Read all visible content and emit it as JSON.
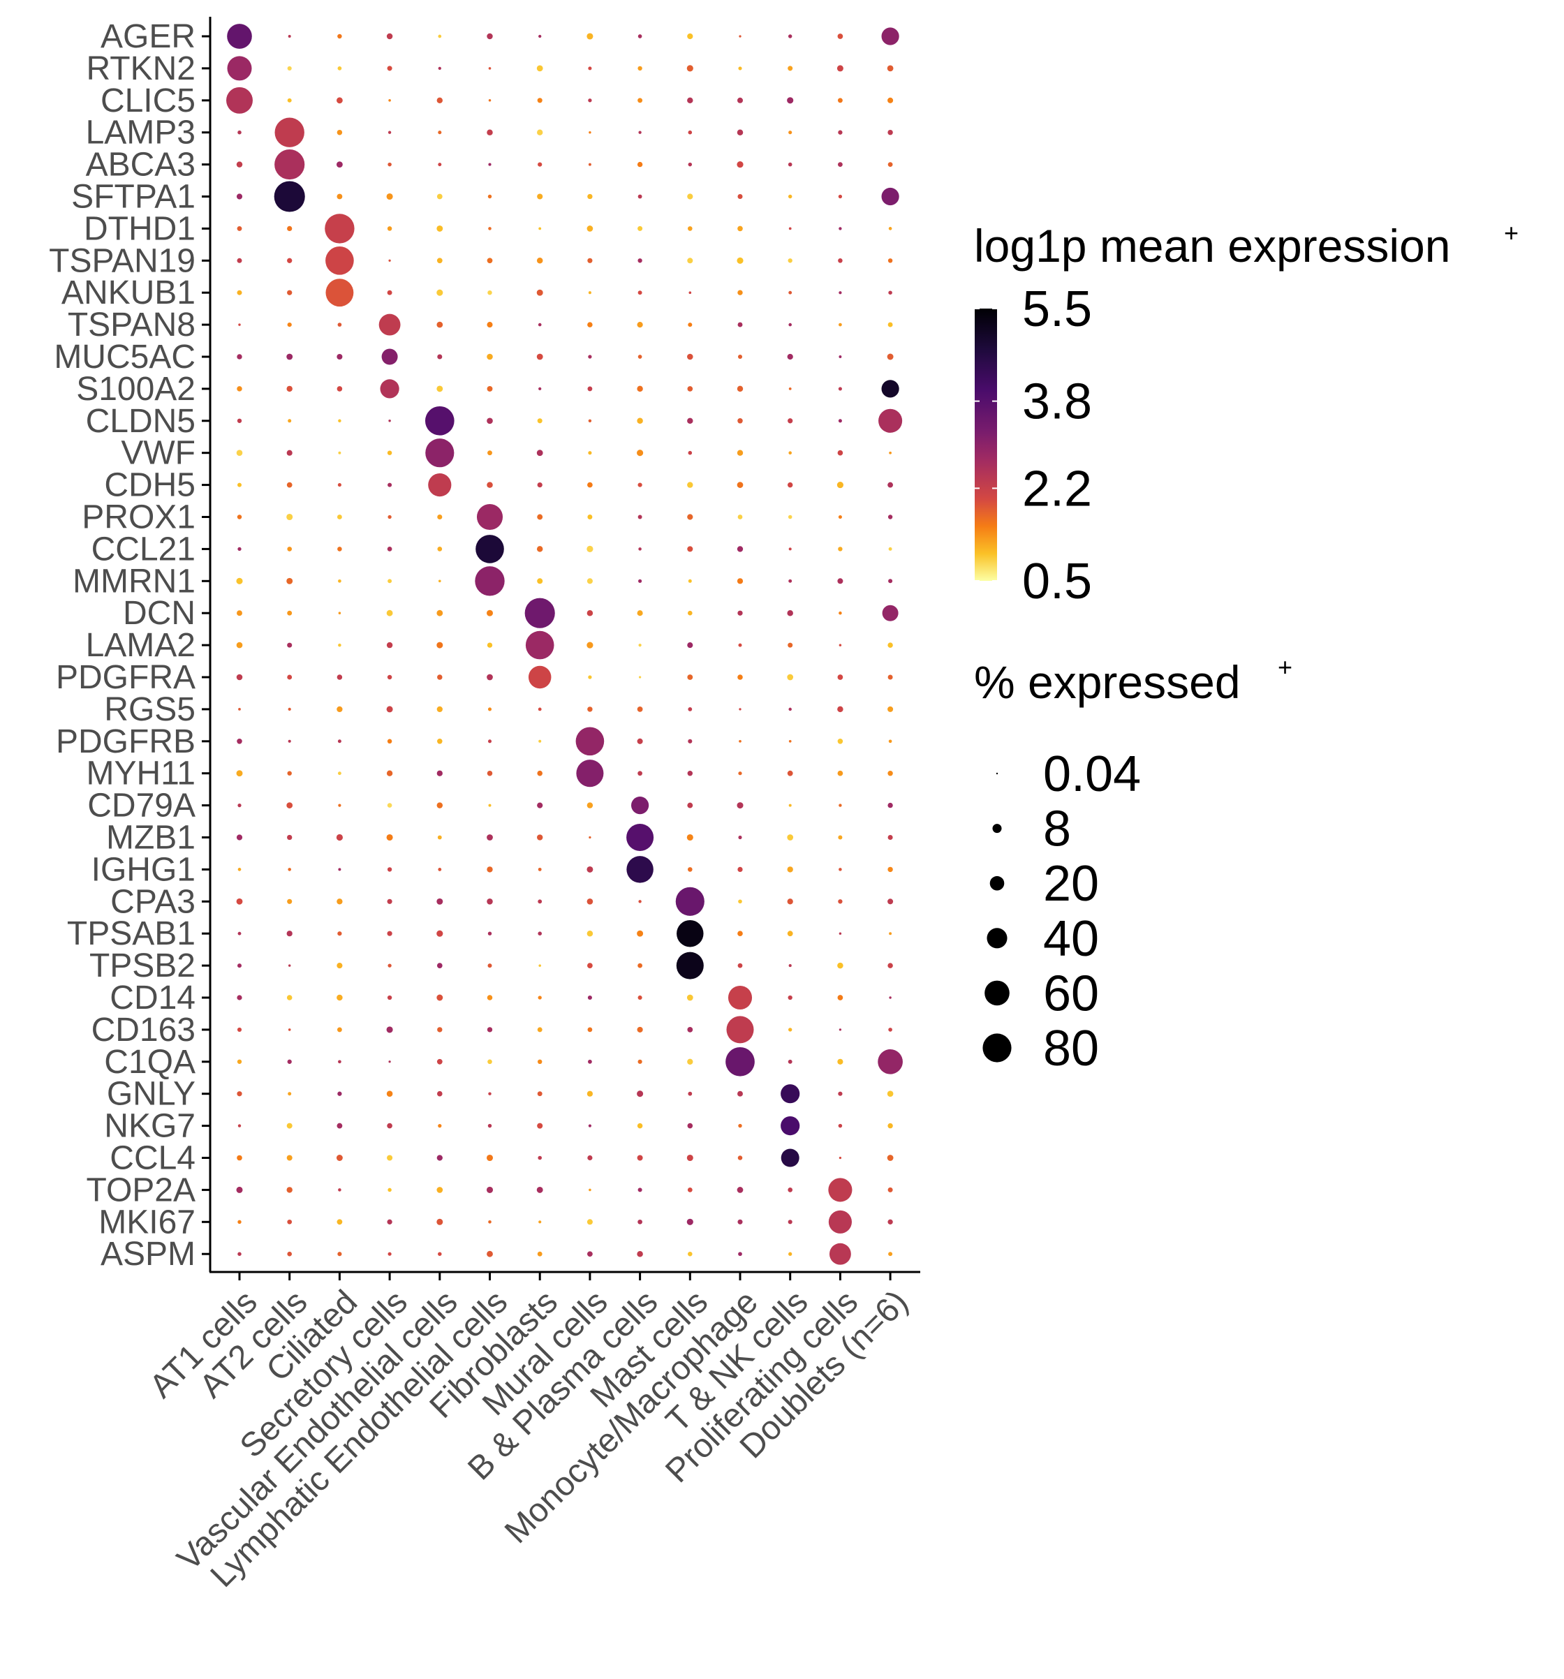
{
  "chart_data": {
    "type": "dotplot",
    "title": "",
    "xlabel": "",
    "ylabel": "",
    "x_categories": [
      "AT1 cells",
      "AT2 cells",
      "Ciliated",
      "Secretory cells",
      "Vascular Endothelial cells",
      "Lymphatic Endothelial cells",
      "Fibroblasts",
      "Mural cells",
      "B & Plasma cells",
      "Mast cells",
      "Monocyte/Macrophage",
      "T & NK cells",
      "Proliferating cells",
      "Doublets (n=6)"
    ],
    "y_categories": [
      "AGER",
      "RTKN2",
      "CLIC5",
      "LAMP3",
      "ABCA3",
      "SFTPA1",
      "DTHD1",
      "TSPAN19",
      "ANKUB1",
      "TSPAN8",
      "MUC5AC",
      "S100A2",
      "CLDN5",
      "VWF",
      "CDH5",
      "PROX1",
      "CCL21",
      "MMRN1",
      "DCN",
      "LAMA2",
      "PDGFRA",
      "RGS5",
      "PDGFRB",
      "MYH11",
      "CD79A",
      "MZB1",
      "IGHG1",
      "CPA3",
      "TPSAB1",
      "TPSB2",
      "CD14",
      "CD163",
      "C1QA",
      "GNLY",
      "NKG7",
      "CCL4",
      "TOP2A",
      "MKI67",
      "ASPM"
    ],
    "color_legend": {
      "title": "log1p mean expression",
      "title_suffix": "+",
      "ticks": [
        "5.5",
        "3.8",
        "2.2",
        "0.5"
      ],
      "range": [
        0.5,
        5.5
      ],
      "palette": "inferno"
    },
    "size_legend": {
      "title": "% expressed",
      "title_suffix": "+",
      "ticks": [
        "0.04",
        "8",
        "20",
        "40",
        "60",
        "80"
      ],
      "values": [
        0.04,
        8,
        20,
        40,
        60,
        80
      ]
    },
    "markers": [
      {
        "cell": "AT1 cells",
        "genes": [
          "AGER",
          "RTKN2",
          "CLIC5"
        ],
        "pct": [
          60,
          58,
          68
        ],
        "expr": [
          3.6,
          2.8,
          2.5
        ]
      },
      {
        "cell": "AT2 cells",
        "genes": [
          "LAMP3",
          "ABCA3",
          "SFTPA1"
        ],
        "pct": [
          85,
          88,
          92
        ],
        "expr": [
          2.3,
          2.6,
          4.8
        ]
      },
      {
        "cell": "Ciliated",
        "genes": [
          "DTHD1",
          "TSPAN19",
          "ANKUB1"
        ],
        "pct": [
          85,
          78,
          75
        ],
        "expr": [
          2.2,
          2.1,
          1.9
        ]
      },
      {
        "cell": "Secretory cells",
        "genes": [
          "TSPAN8",
          "MUC5AC",
          "S100A2"
        ],
        "pct": [
          45,
          25,
          35
        ],
        "expr": [
          2.3,
          3.1,
          2.5
        ]
      },
      {
        "cell": "Vascular Endothelial cells",
        "genes": [
          "CLDN5",
          "VWF",
          "CDH5"
        ],
        "pct": [
          82,
          80,
          52
        ],
        "expr": [
          3.8,
          3.0,
          2.3
        ]
      },
      {
        "cell": "Lymphatic Endothelial cells",
        "genes": [
          "PROX1",
          "CCL21",
          "MMRN1"
        ],
        "pct": [
          65,
          78,
          85
        ],
        "expr": [
          2.8,
          4.8,
          3.0
        ]
      },
      {
        "cell": "Fibroblasts",
        "genes": [
          "DCN",
          "LAMA2",
          "PDGFRA"
        ],
        "pct": [
          88,
          78,
          50
        ],
        "expr": [
          3.4,
          2.8,
          2.1
        ]
      },
      {
        "cell": "Mural cells",
        "genes": [
          "PDGFRB",
          "MYH11"
        ],
        "pct": [
          78,
          72
        ],
        "expr": [
          2.9,
          3.1
        ]
      },
      {
        "cell": "B & Plasma cells",
        "genes": [
          "CD79A",
          "MZB1",
          "IGHG1"
        ],
        "pct": [
          30,
          72,
          70
        ],
        "expr": [
          3.2,
          3.8,
          4.5
        ]
      },
      {
        "cell": "Mast cells",
        "genes": [
          "CPA3",
          "TPSAB1",
          "TPSB2"
        ],
        "pct": [
          80,
          70,
          72
        ],
        "expr": [
          3.5,
          5.3,
          5.2
        ]
      },
      {
        "cell": "Monocyte/Macrophage",
        "genes": [
          "CD14",
          "CD163",
          "C1QA"
        ],
        "pct": [
          55,
          72,
          82
        ],
        "expr": [
          2.2,
          2.3,
          3.5
        ]
      },
      {
        "cell": "T & NK cells",
        "genes": [
          "GNLY",
          "NKG7",
          "CCL4"
        ],
        "pct": [
          35,
          35,
          32
        ],
        "expr": [
          4.3,
          4.0,
          4.6
        ]
      },
      {
        "cell": "Proliferating cells",
        "genes": [
          "TOP2A",
          "MKI67",
          "ASPM"
        ],
        "pct": [
          55,
          52,
          45
        ],
        "expr": [
          2.3,
          2.4,
          2.4
        ]
      },
      {
        "cell": "Doublets (n=6)",
        "genes": [
          "AGER",
          "SFTPA1",
          "S100A2",
          "CLDN5",
          "C1QA",
          "DCN"
        ],
        "pct": [
          30,
          30,
          30,
          55,
          60,
          25
        ],
        "expr": [
          3.0,
          3.2,
          5.0,
          2.6,
          2.9,
          2.9
        ]
      }
    ]
  }
}
